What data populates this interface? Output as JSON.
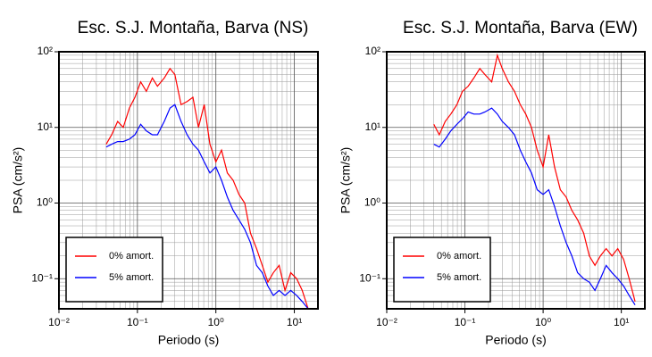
{
  "chart_data": [
    {
      "type": "line",
      "title": "Esc. S.J. Montaña, Barva (NS)",
      "xlabel": "Periodo (s)",
      "ylabel": "PSA (cm/s²)",
      "log_x": true,
      "log_y": true,
      "grid": true,
      "legend": "lower left",
      "xlim": [
        0.01,
        20
      ],
      "ylim": [
        0.04,
        100
      ],
      "xticks": [
        {
          "value": 0.01,
          "label": "10⁻²"
        },
        {
          "value": 0.1,
          "label": "10⁻¹"
        },
        {
          "value": 1,
          "label": "10⁰"
        },
        {
          "value": 10,
          "label": "10¹"
        }
      ],
      "yticks": [
        {
          "value": 0.1,
          "label": "10⁻¹"
        },
        {
          "value": 1,
          "label": "10⁰"
        },
        {
          "value": 10,
          "label": "10¹"
        },
        {
          "value": 100,
          "label": "10²"
        }
      ],
      "x": [
        0.04,
        0.047,
        0.056,
        0.066,
        0.079,
        0.093,
        0.11,
        0.13,
        0.155,
        0.18,
        0.22,
        0.26,
        0.3,
        0.36,
        0.43,
        0.51,
        0.6,
        0.71,
        0.84,
        1.0,
        1.18,
        1.4,
        1.66,
        1.97,
        2.33,
        2.76,
        3.3,
        3.9,
        4.6,
        5.4,
        6.4,
        7.6,
        9.0,
        10.7,
        12.6,
        15
      ],
      "series": [
        {
          "name": "0% amort.",
          "color": "#ff0000",
          "values": [
            6,
            8,
            12,
            10,
            18,
            25,
            40,
            30,
            45,
            35,
            45,
            60,
            50,
            20,
            22,
            25,
            10,
            20,
            6,
            3.5,
            5,
            2.5,
            2,
            1.3,
            1,
            0.4,
            0.25,
            0.15,
            0.09,
            0.12,
            0.15,
            0.07,
            0.12,
            0.1,
            0.07,
            0.04
          ]
        },
        {
          "name": "5% amort.",
          "color": "#0000ff",
          "values": [
            5.5,
            6,
            6.5,
            6.5,
            7,
            8,
            11,
            9,
            8,
            8,
            12,
            18,
            20,
            12,
            8,
            6,
            5,
            3.5,
            2.5,
            3,
            2,
            1.2,
            0.8,
            0.6,
            0.45,
            0.3,
            0.15,
            0.12,
            0.08,
            0.06,
            0.07,
            0.06,
            0.07,
            0.06,
            0.05,
            0.04
          ]
        }
      ]
    },
    {
      "type": "line",
      "title": "Esc. S.J. Montaña, Barva (EW)",
      "xlabel": "Periodo (s)",
      "ylabel": "PSA (cm/s²)",
      "log_x": true,
      "log_y": true,
      "grid": true,
      "legend": "lower left",
      "xlim": [
        0.01,
        20
      ],
      "ylim": [
        0.04,
        100
      ],
      "xticks": [
        {
          "value": 0.01,
          "label": "10⁻²"
        },
        {
          "value": 0.1,
          "label": "10⁻¹"
        },
        {
          "value": 1,
          "label": "10⁰"
        },
        {
          "value": 10,
          "label": "10¹"
        }
      ],
      "yticks": [
        {
          "value": 0.1,
          "label": "10⁻¹"
        },
        {
          "value": 1,
          "label": "10⁰"
        },
        {
          "value": 10,
          "label": "10¹"
        },
        {
          "value": 100,
          "label": "10²"
        }
      ],
      "x": [
        0.04,
        0.047,
        0.056,
        0.066,
        0.079,
        0.093,
        0.11,
        0.13,
        0.155,
        0.18,
        0.22,
        0.26,
        0.3,
        0.36,
        0.43,
        0.51,
        0.6,
        0.71,
        0.84,
        1.0,
        1.18,
        1.4,
        1.66,
        1.97,
        2.33,
        2.76,
        3.3,
        3.9,
        4.6,
        5.4,
        6.4,
        7.6,
        9.0,
        10.7,
        12.6,
        15
      ],
      "series": [
        {
          "name": "0% amort.",
          "color": "#ff0000",
          "values": [
            11,
            8,
            12,
            15,
            20,
            30,
            35,
            45,
            60,
            50,
            40,
            90,
            60,
            40,
            30,
            20,
            15,
            10,
            5,
            3,
            8,
            3,
            1.5,
            1.2,
            0.8,
            0.6,
            0.4,
            0.2,
            0.15,
            0.2,
            0.25,
            0.2,
            0.25,
            0.18,
            0.1,
            0.05
          ]
        },
        {
          "name": "5% amort.",
          "color": "#0000ff",
          "values": [
            6,
            5.5,
            7,
            9,
            11,
            13,
            16,
            15,
            15,
            16,
            18,
            15,
            12,
            10,
            8,
            5,
            3.5,
            2.5,
            1.5,
            1.3,
            1.5,
            0.9,
            0.5,
            0.3,
            0.2,
            0.12,
            0.1,
            0.09,
            0.07,
            0.1,
            0.15,
            0.12,
            0.1,
            0.08,
            0.06,
            0.045
          ]
        }
      ]
    }
  ]
}
